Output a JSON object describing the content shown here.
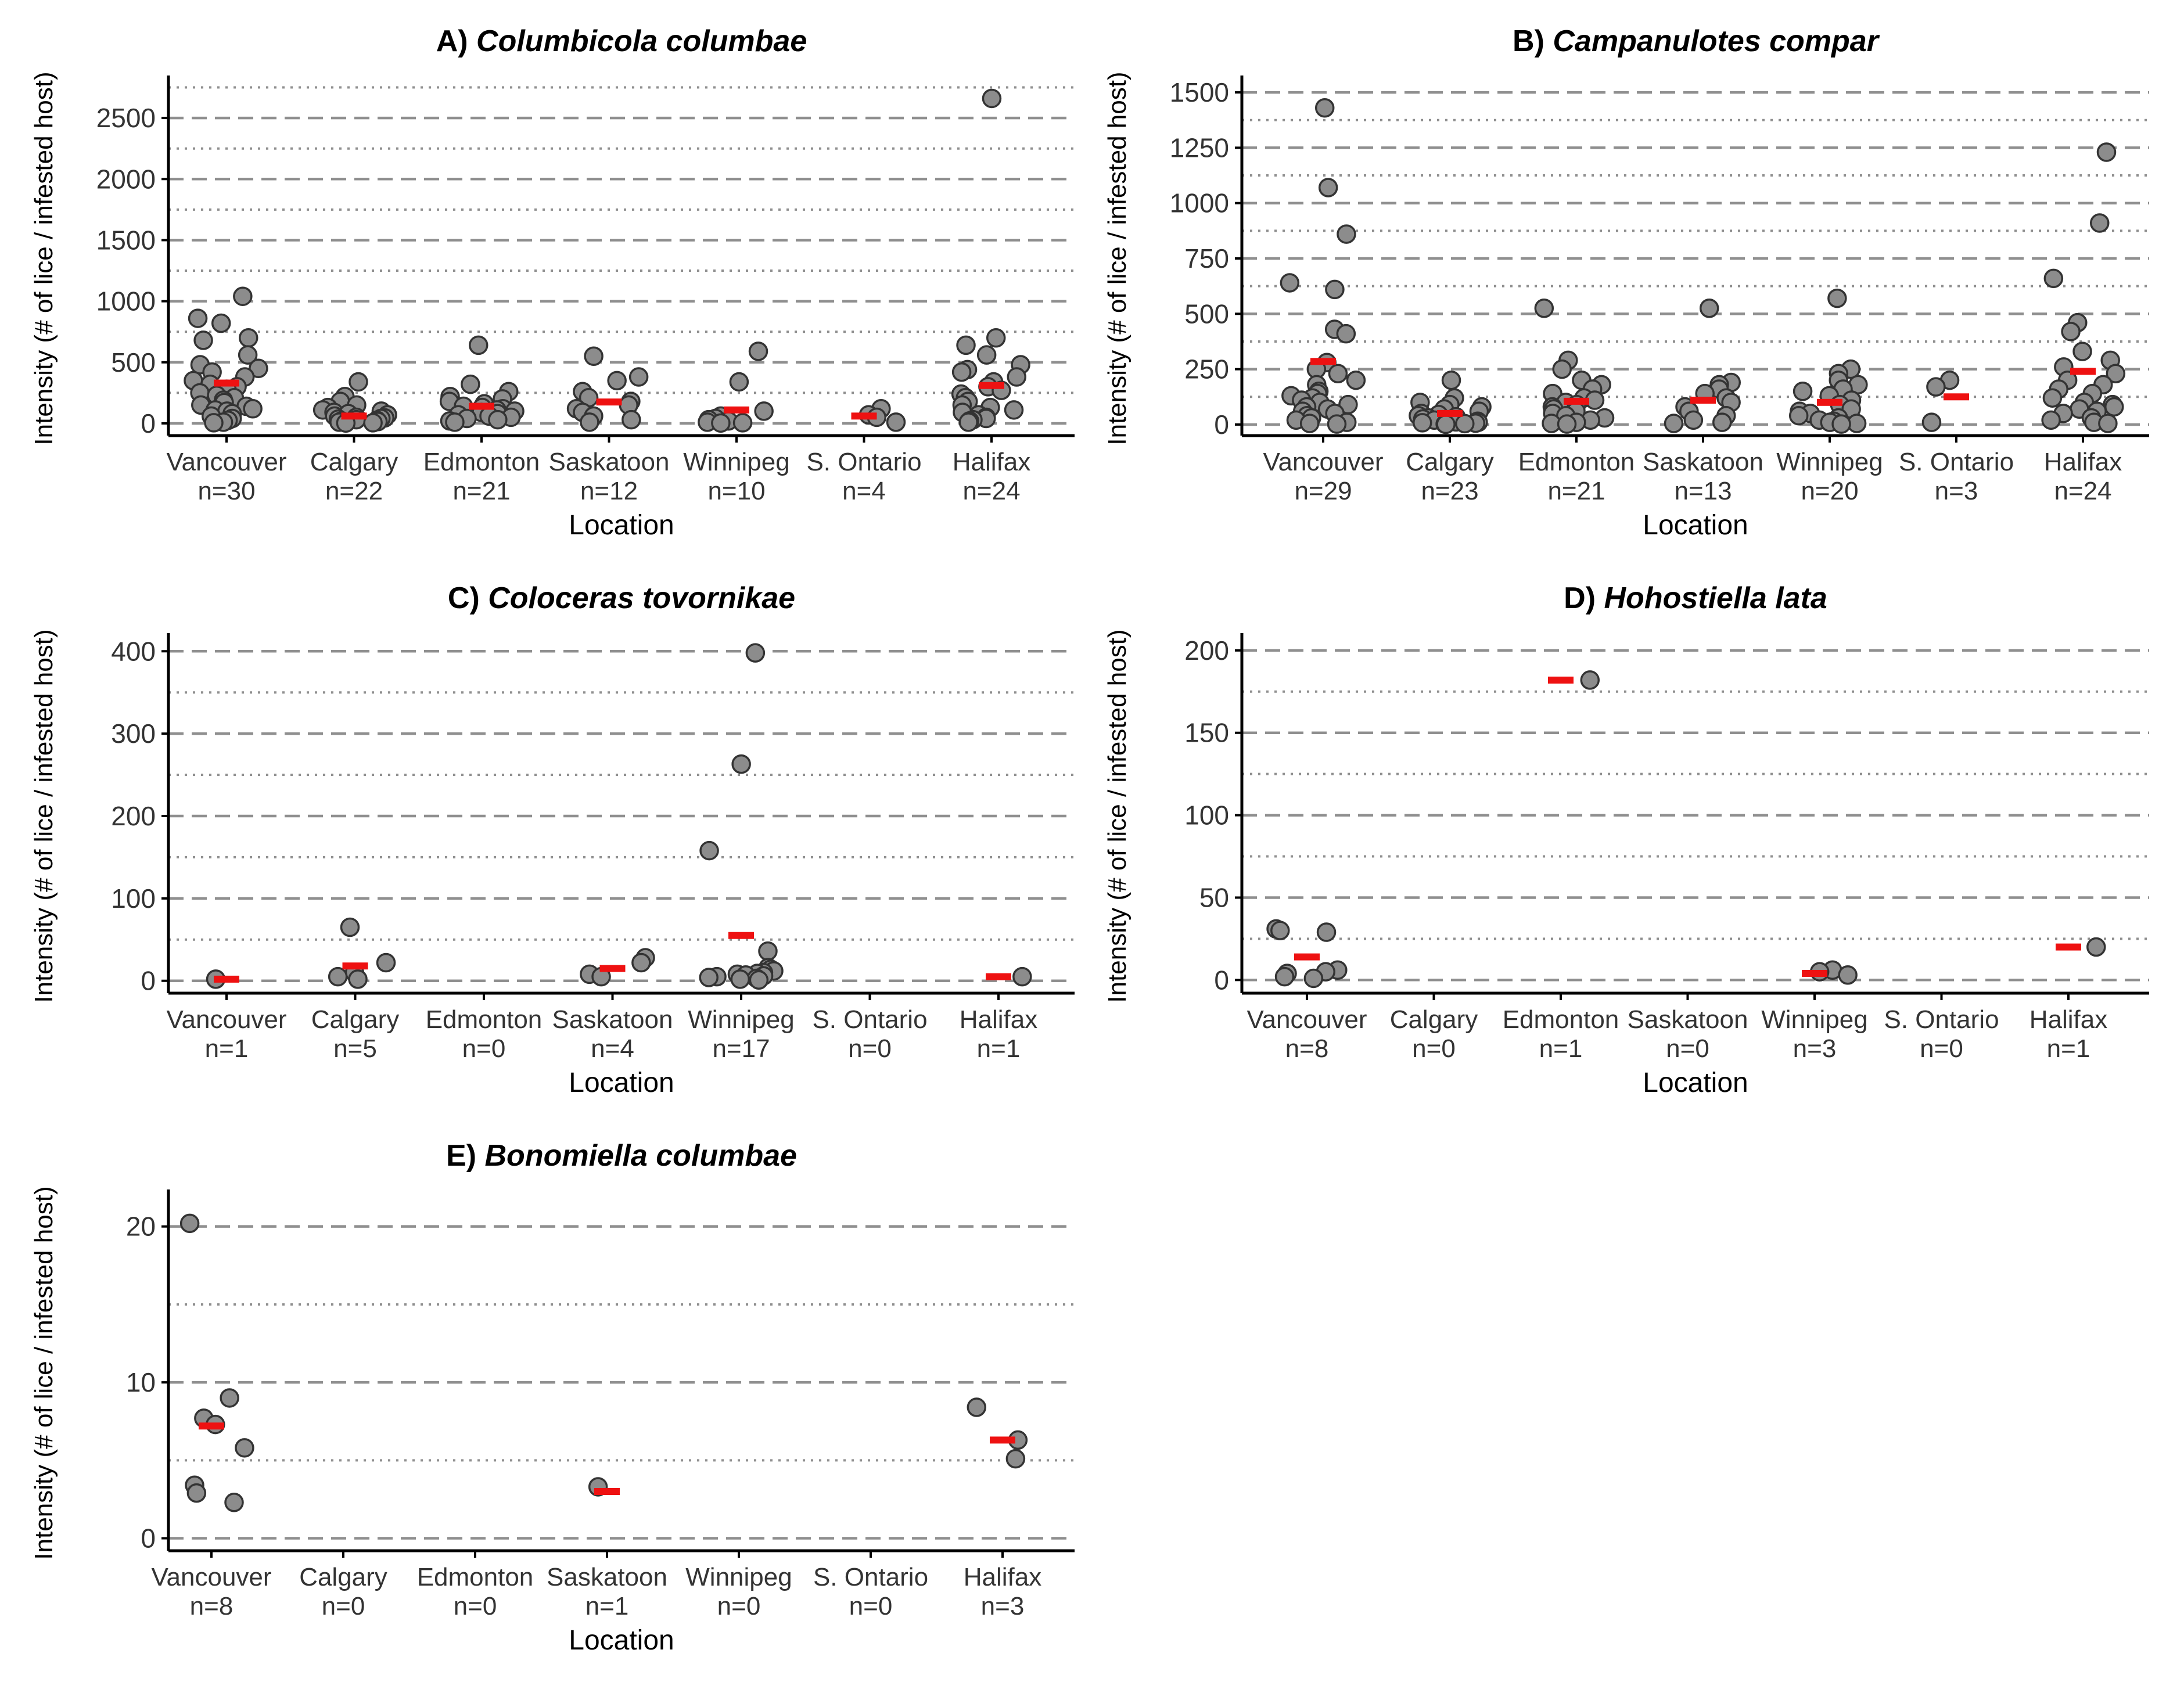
{
  "figure": {
    "colors": {
      "point_fill": "#8c8c8c",
      "point_stroke": "#333333",
      "mean_bar": "#ee1111",
      "grid": "#8f8f8f",
      "axis": "#000000"
    }
  },
  "chart_data": [
    {
      "type": "scatter",
      "panel": "A",
      "title_prefix": "A)",
      "species": "Columbicola columbae",
      "ylabel": "Intensity (# of lice / infested host)",
      "xlabel": "Location",
      "ylim": [
        -100,
        2800
      ],
      "yticks": [
        0,
        500,
        1000,
        1500,
        2000,
        2500
      ],
      "major_grid": [
        0,
        500,
        1000,
        1500,
        2000,
        2500
      ],
      "minor_grid": [
        250,
        750,
        1250,
        1750,
        2250,
        2750
      ],
      "categories": [
        "Vancouver",
        "Calgary",
        "Edmonton",
        "Saskatoon",
        "Winnipeg",
        "S. Ontario",
        "Halifax"
      ],
      "n_labels": [
        "n=30",
        "n=22",
        "n=21",
        "n=12",
        "n=10",
        "n=4",
        "n=24"
      ],
      "means": [
        330,
        60,
        140,
        175,
        110,
        60,
        310
      ],
      "points": [
        [
          1040,
          860,
          820,
          700,
          680,
          560,
          480,
          450,
          420,
          380,
          350,
          320,
          300,
          280,
          250,
          230,
          210,
          190,
          170,
          150,
          140,
          120,
          110,
          100,
          80,
          60,
          40,
          25,
          10,
          5
        ],
        [
          340,
          220,
          180,
          150,
          130,
          110,
          100,
          90,
          80,
          70,
          60,
          50,
          45,
          40,
          35,
          30,
          25,
          20,
          15,
          10,
          5,
          3
        ],
        [
          640,
          320,
          260,
          220,
          200,
          180,
          160,
          140,
          130,
          120,
          110,
          100,
          90,
          80,
          70,
          60,
          50,
          40,
          30,
          20,
          10
        ],
        [
          550,
          380,
          350,
          260,
          210,
          180,
          150,
          120,
          90,
          60,
          30,
          10
        ],
        [
          590,
          340,
          100,
          60,
          40,
          30,
          20,
          10,
          5,
          3
        ],
        [
          120,
          70,
          50,
          10
        ],
        [
          2660,
          700,
          640,
          560,
          480,
          440,
          420,
          380,
          340,
          300,
          270,
          240,
          210,
          180,
          150,
          130,
          110,
          90,
          70,
          50,
          40,
          30,
          20,
          10
        ]
      ]
    },
    {
      "type": "scatter",
      "panel": "B",
      "title_prefix": "B)",
      "species": "Campanulotes compar",
      "ylabel": "Intensity (# of lice / infested host)",
      "xlabel": "Location",
      "ylim": [
        -50,
        1550
      ],
      "yticks": [
        0,
        250,
        500,
        750,
        1000,
        1250,
        1500
      ],
      "major_grid": [
        0,
        250,
        500,
        750,
        1000,
        1250,
        1500
      ],
      "minor_grid": [
        125,
        375,
        625,
        875,
        1125,
        1375
      ],
      "categories": [
        "Vancouver",
        "Calgary",
        "Edmonton",
        "Saskatoon",
        "Winnipeg",
        "S. Ontario",
        "Halifax"
      ],
      "n_labels": [
        "n=29",
        "n=23",
        "n=21",
        "n=13",
        "n=20",
        "n=3",
        "n=24"
      ],
      "means": [
        285,
        50,
        105,
        110,
        100,
        125,
        240
      ],
      "points": [
        [
          1430,
          1070,
          860,
          640,
          610,
          430,
          410,
          280,
          250,
          230,
          200,
          180,
          150,
          140,
          130,
          120,
          110,
          100,
          90,
          80,
          70,
          60,
          50,
          40,
          30,
          20,
          10,
          5,
          2
        ],
        [
          200,
          120,
          100,
          90,
          80,
          70,
          60,
          50,
          45,
          40,
          35,
          30,
          25,
          20,
          18,
          15,
          12,
          10,
          8,
          6,
          4,
          2,
          1
        ],
        [
          525,
          290,
          250,
          200,
          180,
          160,
          140,
          120,
          110,
          100,
          90,
          80,
          70,
          60,
          50,
          40,
          30,
          20,
          10,
          5,
          2
        ],
        [
          525,
          190,
          180,
          160,
          140,
          120,
          100,
          80,
          60,
          40,
          20,
          10,
          5
        ],
        [
          570,
          250,
          230,
          200,
          180,
          160,
          150,
          130,
          110,
          90,
          70,
          60,
          50,
          40,
          30,
          20,
          15,
          10,
          5,
          2
        ],
        [
          200,
          170,
          10
        ],
        [
          1230,
          910,
          660,
          460,
          420,
          330,
          290,
          260,
          230,
          200,
          180,
          160,
          140,
          120,
          100,
          90,
          80,
          70,
          60,
          50,
          30,
          20,
          10,
          5
        ]
      ]
    },
    {
      "type": "scatter",
      "panel": "C",
      "title_prefix": "C)",
      "species": "Coloceras tovornikae",
      "ylabel": "Intensity (# of lice / infested host)",
      "xlabel": "Location",
      "ylim": [
        -15,
        415
      ],
      "yticks": [
        0,
        100,
        200,
        300,
        400
      ],
      "major_grid": [
        0,
        100,
        200,
        300,
        400
      ],
      "minor_grid": [
        50,
        150,
        250,
        350
      ],
      "categories": [
        "Vancouver",
        "Calgary",
        "Edmonton",
        "Saskatoon",
        "Winnipeg",
        "S. Ontario",
        "Halifax"
      ],
      "n_labels": [
        "n=1",
        "n=5",
        "n=0",
        "n=4",
        "n=17",
        "n=0",
        "n=1"
      ],
      "means": [
        2,
        18,
        null,
        15,
        55,
        null,
        5
      ],
      "points": [
        [
          2
        ],
        [
          65,
          22,
          10,
          5,
          2
        ],
        [],
        [
          28,
          22,
          8,
          5
        ],
        [
          398,
          263,
          158,
          36,
          16,
          14,
          12,
          10,
          9,
          8,
          7,
          6,
          5,
          4,
          3,
          2,
          1
        ],
        [],
        [
          5
        ]
      ]
    },
    {
      "type": "scatter",
      "panel": "D",
      "title_prefix": "D)",
      "species": "Hohostiella lata",
      "ylabel": "Intensity (# of lice / infested host)",
      "xlabel": "Location",
      "ylim": [
        -8,
        207
      ],
      "yticks": [
        0,
        50,
        100,
        150,
        200
      ],
      "major_grid": [
        0,
        50,
        100,
        150,
        200
      ],
      "minor_grid": [
        25,
        75,
        125,
        175
      ],
      "categories": [
        "Vancouver",
        "Calgary",
        "Edmonton",
        "Saskatoon",
        "Winnipeg",
        "S. Ontario",
        "Halifax"
      ],
      "n_labels": [
        "n=8",
        "n=0",
        "n=1",
        "n=0",
        "n=3",
        "n=0",
        "n=1"
      ],
      "means": [
        14,
        null,
        182,
        null,
        4,
        null,
        20
      ],
      "points": [
        [
          31,
          30,
          29,
          6,
          5,
          4,
          2,
          1
        ],
        [],
        [
          182
        ],
        [],
        [
          6,
          5,
          3
        ],
        [],
        [
          20
        ]
      ]
    },
    {
      "type": "scatter",
      "panel": "E",
      "title_prefix": "E)",
      "species": "Bonomiella columbae",
      "ylabel": "Intensity (# of lice / infested host)",
      "xlabel": "Location",
      "ylim": [
        -0.8,
        22
      ],
      "yticks": [
        0,
        10,
        20
      ],
      "major_grid": [
        0,
        10,
        20
      ],
      "minor_grid": [
        5,
        15
      ],
      "categories": [
        "Vancouver",
        "Calgary",
        "Edmonton",
        "Saskatoon",
        "Winnipeg",
        "S. Ontario",
        "Halifax"
      ],
      "n_labels": [
        "n=8",
        "n=0",
        "n=0",
        "n=1",
        "n=0",
        "n=0",
        "n=3"
      ],
      "means": [
        7.2,
        null,
        null,
        3,
        null,
        null,
        6.3
      ],
      "points": [
        [
          20.2,
          9,
          7.7,
          7.3,
          5.8,
          3.4,
          2.9,
          2.3
        ],
        [],
        [],
        [
          3.3
        ],
        [],
        [],
        [
          8.4,
          6.3,
          5.1
        ]
      ]
    }
  ]
}
